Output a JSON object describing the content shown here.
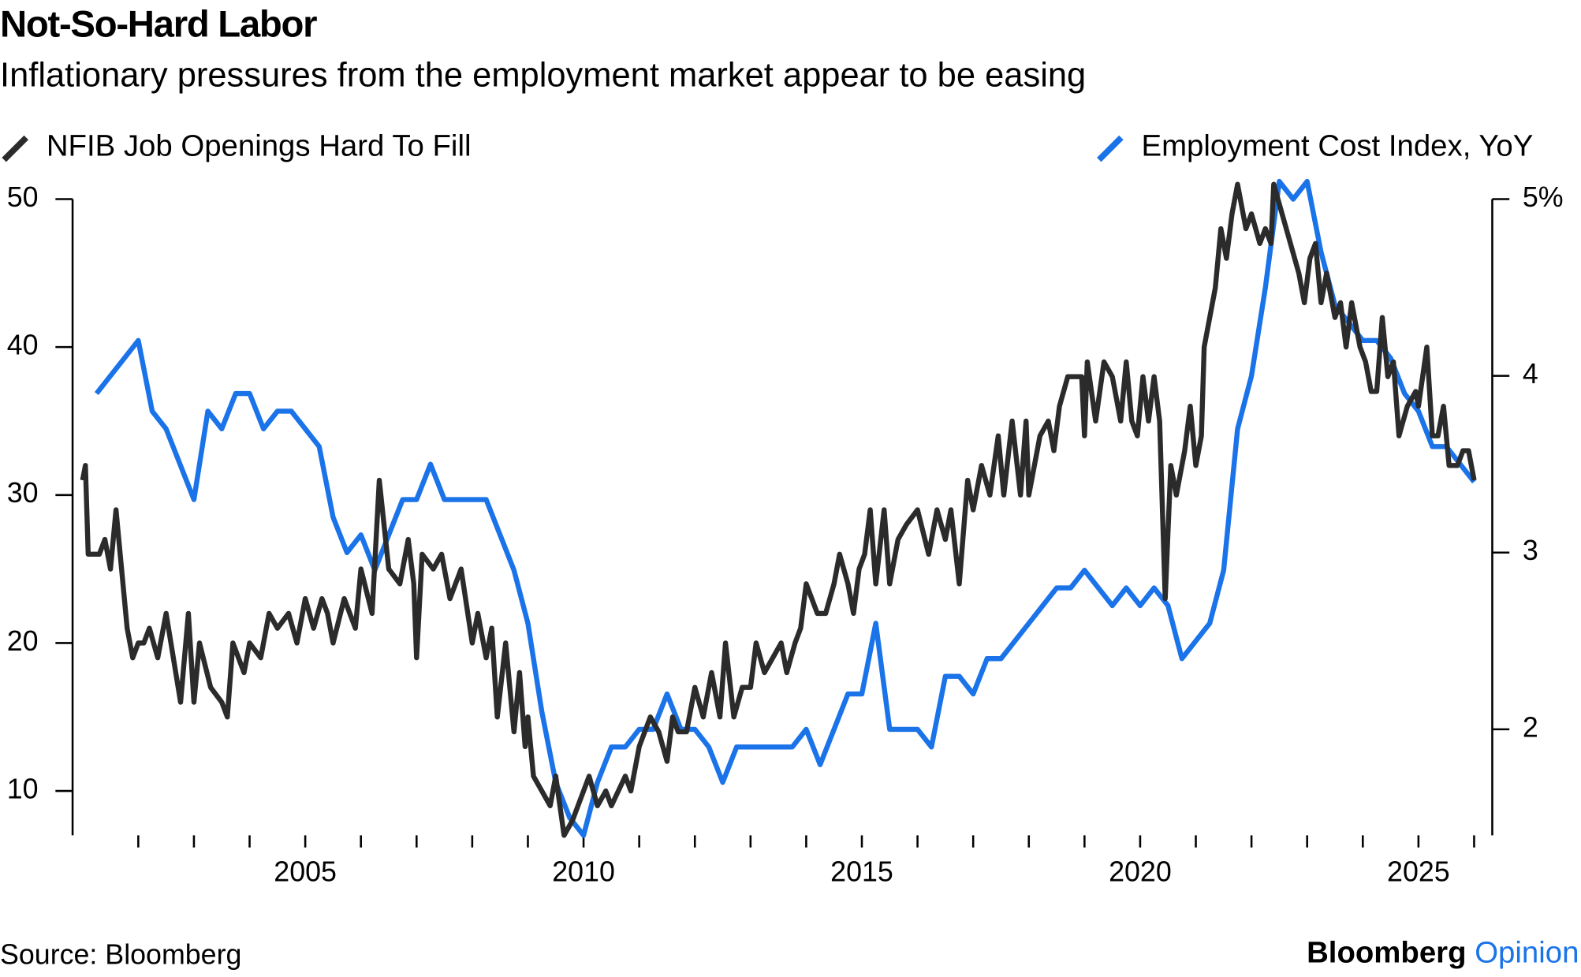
{
  "chart_data": {
    "type": "line",
    "title": "Not-So-Hard Labor",
    "subtitle": "Inflationary pressures from the employment market appear to be easing",
    "source": "Source: Bloomberg",
    "brand": "Bloomberg",
    "brand_suffix": "Opinion",
    "xlim": [
      2000.82,
      2026.0
    ],
    "xticks": [
      2005,
      2010,
      2015,
      2020,
      2025
    ],
    "xminor_ticks": [
      2002,
      2003,
      2004,
      2005,
      2006,
      2007,
      2008,
      2009,
      2010,
      2011,
      2012,
      2013,
      2014,
      2015,
      2016,
      2017,
      2018,
      2019,
      2020,
      2021,
      2022,
      2023,
      2024,
      2025,
      2026
    ],
    "ylim": [
      7,
      50
    ],
    "yticks": [
      10,
      20,
      30,
      40,
      50
    ],
    "y2lim": [
      1.4,
      5
    ],
    "y2ticks": [
      2,
      3,
      4,
      {
        "value": 5,
        "label": "5%"
      }
    ],
    "grid": false,
    "series": [
      {
        "name": "NFIB Job Openings Hard To Fill",
        "color": "#2b2b2b",
        "axis": "y",
        "x": [
          2001.0,
          2001.05,
          2001.1,
          2001.3,
          2001.4,
          2001.5,
          2001.6,
          2001.8,
          2001.9,
          2002.0,
          2002.1,
          2002.2,
          2002.35,
          2002.5,
          2002.76,
          2002.9,
          2003.0,
          2003.1,
          2003.3,
          2003.5,
          2003.6,
          2003.7,
          2003.9,
          2004.0,
          2004.2,
          2004.35,
          2004.5,
          2004.7,
          2004.85,
          2005.0,
          2005.15,
          2005.3,
          2005.4,
          2005.5,
          2005.7,
          2005.9,
          2006.0,
          2006.2,
          2006.33,
          2006.5,
          2006.7,
          2006.85,
          2006.95,
          2007.0,
          2007.1,
          2007.3,
          2007.45,
          2007.6,
          2007.8,
          2008.0,
          2008.1,
          2008.25,
          2008.35,
          2008.45,
          2008.6,
          2008.75,
          2008.85,
          2008.95,
          2009.0,
          2009.1,
          2009.25,
          2009.4,
          2009.5,
          2009.65,
          2009.8,
          2009.9,
          2010.0,
          2010.1,
          2010.25,
          2010.4,
          2010.5,
          2010.75,
          2010.85,
          2011.0,
          2011.2,
          2011.35,
          2011.5,
          2011.6,
          2011.7,
          2011.85,
          2012.0,
          2012.15,
          2012.3,
          2012.45,
          2012.55,
          2012.7,
          2012.85,
          2013.0,
          2013.1,
          2013.25,
          2013.4,
          2013.55,
          2013.65,
          2013.8,
          2013.9,
          2014.0,
          2014.2,
          2014.35,
          2014.5,
          2014.6,
          2014.75,
          2014.85,
          2014.95,
          2015.05,
          2015.15,
          2015.25,
          2015.4,
          2015.5,
          2015.65,
          2015.8,
          2016.0,
          2016.2,
          2016.35,
          2016.5,
          2016.6,
          2016.75,
          2016.9,
          2017.0,
          2017.15,
          2017.3,
          2017.45,
          2017.55,
          2017.7,
          2017.85,
          2017.95,
          2018.0,
          2018.2,
          2018.35,
          2018.45,
          2018.55,
          2018.7,
          2018.95,
          2019.0,
          2019.05,
          2019.2,
          2019.35,
          2019.5,
          2019.65,
          2019.75,
          2019.85,
          2019.95,
          2020.05,
          2020.15,
          2020.25,
          2020.35,
          2020.45,
          2020.55,
          2020.65,
          2020.8,
          2020.9,
          2021.0,
          2021.1,
          2021.15,
          2021.35,
          2021.45,
          2021.55,
          2021.65,
          2021.75,
          2021.9,
          2022.0,
          2022.15,
          2022.25,
          2022.35,
          2022.4,
          2022.55,
          2022.7,
          2022.85,
          2022.95,
          2023.05,
          2023.15,
          2023.25,
          2023.35,
          2023.5,
          2023.6,
          2023.7,
          2023.8,
          2023.95,
          2024.05,
          2024.15,
          2024.25,
          2024.35,
          2024.45,
          2024.55,
          2024.65,
          2024.8,
          2024.95,
          2025.0,
          2025.15,
          2025.25,
          2025.35,
          2025.45,
          2025.55,
          2025.7,
          2025.8,
          2025.9,
          2026.0
        ],
        "values": [
          31,
          32,
          26,
          26,
          27,
          25,
          29,
          21,
          19,
          20,
          20,
          21,
          19,
          22,
          16,
          22,
          16,
          20,
          17,
          16,
          15,
          20,
          18,
          20,
          19,
          22,
          21,
          22,
          20,
          23,
          21,
          23,
          22,
          20,
          23,
          21,
          25,
          22,
          31,
          25,
          24,
          27,
          24,
          19,
          26,
          25,
          26,
          23,
          25,
          20,
          22,
          19,
          21,
          15,
          20,
          14,
          18,
          13,
          15,
          11,
          10,
          9,
          11,
          7,
          8,
          9,
          10,
          11,
          9,
          10,
          9,
          11,
          10,
          13,
          15,
          14,
          12,
          15,
          14,
          14,
          17,
          15,
          18,
          15,
          20,
          15,
          17,
          17,
          20,
          18,
          19,
          20,
          18,
          20,
          21,
          24,
          22,
          22,
          24,
          26,
          24,
          22,
          25,
          26,
          29,
          24,
          29,
          24,
          27,
          28,
          29,
          26,
          29,
          27,
          29,
          24,
          31,
          29,
          32,
          30,
          34,
          30,
          35,
          30,
          35,
          30,
          34,
          35,
          33,
          36,
          38,
          38,
          34,
          39,
          35,
          39,
          38,
          35,
          39,
          35,
          34,
          38,
          35,
          38,
          35,
          23,
          32,
          30,
          33,
          36,
          32,
          34,
          40,
          44,
          48,
          46,
          49,
          51,
          48,
          49,
          47,
          48,
          47,
          51,
          49,
          47,
          45,
          43,
          46,
          47,
          43,
          45,
          42,
          43,
          40,
          43,
          40,
          39,
          37,
          37,
          42,
          38,
          39,
          34,
          36,
          37,
          36,
          40,
          34,
          34,
          36,
          32,
          32,
          33,
          33,
          31
        ]
      },
      {
        "name": "Employment Cost Index, YoY",
        "color": "#1a73e8",
        "axis": "y2",
        "x": [
          2001.25,
          2002.0,
          2002.25,
          2002.5,
          2003.0,
          2003.25,
          2003.5,
          2003.75,
          2004.0,
          2004.25,
          2004.5,
          2004.75,
          2005.0,
          2005.25,
          2005.5,
          2005.75,
          2006.0,
          2006.25,
          2006.5,
          2006.75,
          2007.0,
          2007.25,
          2007.5,
          2007.75,
          2008.0,
          2008.25,
          2008.5,
          2008.75,
          2009.0,
          2009.25,
          2009.5,
          2009.75,
          2010.0,
          2010.25,
          2010.5,
          2010.75,
          2011.0,
          2011.25,
          2011.5,
          2011.75,
          2012.0,
          2012.25,
          2012.5,
          2012.75,
          2013.0,
          2013.25,
          2013.5,
          2013.75,
          2014.0,
          2014.25,
          2014.5,
          2014.75,
          2015.0,
          2015.25,
          2015.5,
          2015.75,
          2016.0,
          2016.25,
          2016.5,
          2016.75,
          2017.0,
          2017.25,
          2017.5,
          2017.75,
          2018.0,
          2018.25,
          2018.5,
          2018.75,
          2019.0,
          2019.25,
          2019.5,
          2019.75,
          2020.0,
          2020.25,
          2020.5,
          2020.75,
          2021.0,
          2021.25,
          2021.5,
          2021.75,
          2022.0,
          2022.25,
          2022.5,
          2022.75,
          2023.0,
          2023.25,
          2023.5,
          2023.75,
          2024.0,
          2024.25,
          2024.5,
          2024.75,
          2025.0,
          2025.25,
          2025.5,
          2025.75,
          2026.0
        ],
        "values": [
          3.9,
          4.2,
          3.8,
          3.7,
          3.3,
          3.8,
          3.7,
          3.9,
          3.9,
          3.7,
          3.8,
          3.8,
          3.7,
          3.6,
          3.2,
          3.0,
          3.1,
          2.9,
          3.1,
          3.3,
          3.3,
          3.5,
          3.3,
          3.3,
          3.3,
          3.3,
          3.1,
          2.9,
          2.6,
          2.1,
          1.7,
          1.5,
          1.4,
          1.7,
          1.9,
          1.9,
          2.0,
          2.0,
          2.2,
          2.0,
          2.0,
          1.9,
          1.7,
          1.9,
          1.9,
          1.9,
          1.9,
          1.9,
          2.0,
          1.8,
          2.0,
          2.2,
          2.2,
          2.6,
          2.0,
          2.0,
          2.0,
          1.9,
          2.3,
          2.3,
          2.2,
          2.4,
          2.4,
          2.5,
          2.6,
          2.7,
          2.8,
          2.8,
          2.9,
          2.8,
          2.7,
          2.8,
          2.7,
          2.8,
          2.7,
          2.4,
          2.5,
          2.6,
          2.9,
          3.7,
          4.0,
          4.5,
          5.1,
          5.0,
          5.1,
          4.7,
          4.4,
          4.3,
          4.2,
          4.2,
          4.1,
          3.9,
          3.8,
          3.6,
          3.6,
          3.5,
          3.4
        ]
      }
    ]
  }
}
